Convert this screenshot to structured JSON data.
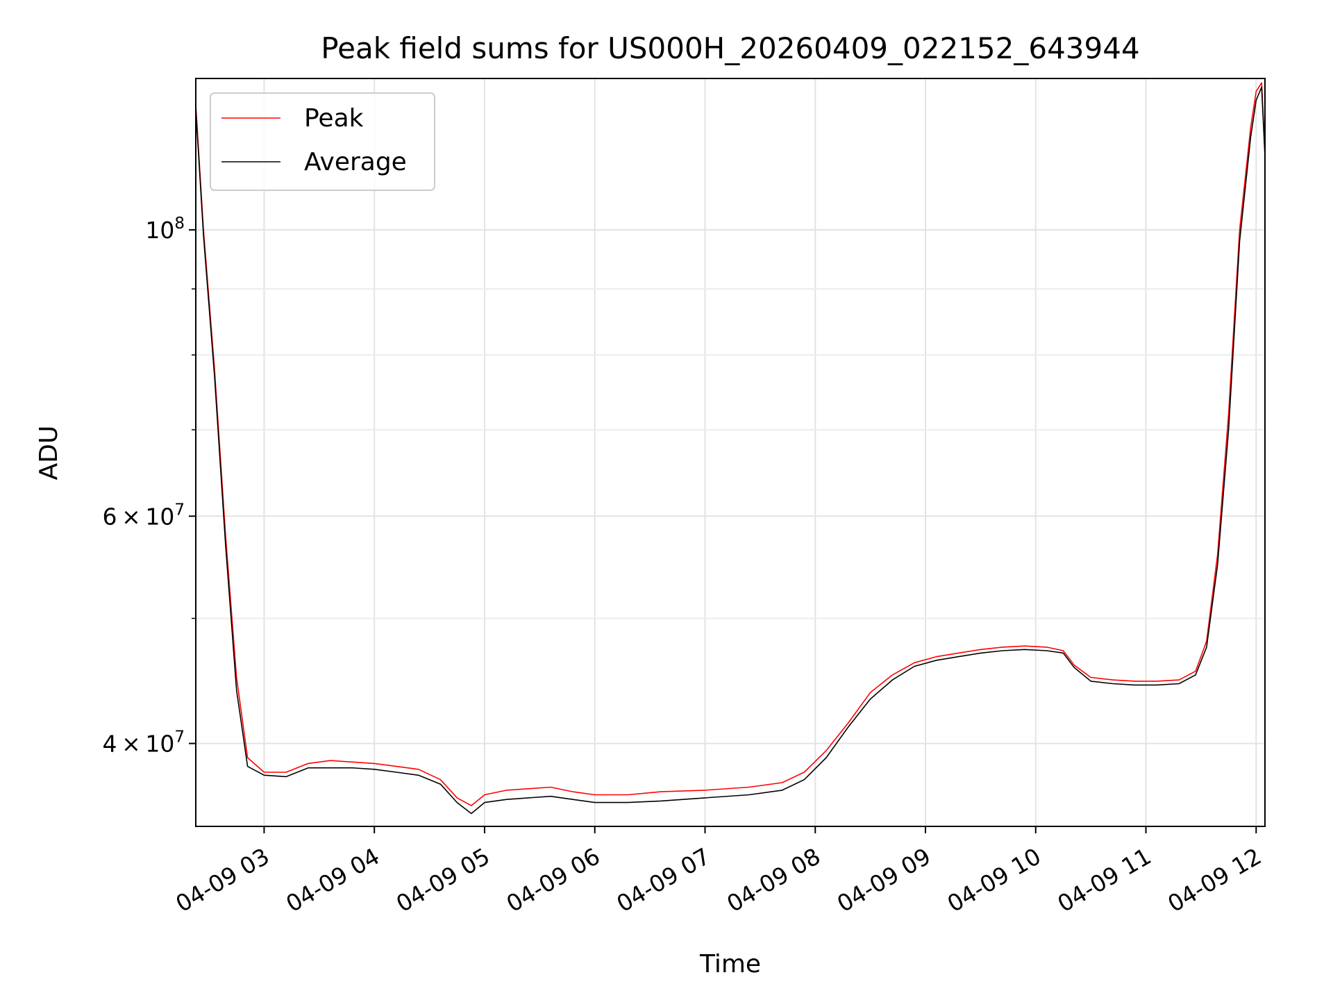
{
  "chart_data": {
    "type": "line",
    "title": "Peak field sums for US000H_20260409_022152_643944",
    "xlabel": "Time",
    "ylabel": "ADU",
    "yscale": "log",
    "ylim": [
      34500000,
      131000000
    ],
    "xlim": [
      2.38,
      12.08
    ],
    "grid": true,
    "legend_position": "top-left",
    "x_ticks": [
      {
        "value": 3,
        "label": "04-09 03"
      },
      {
        "value": 4,
        "label": "04-09 04"
      },
      {
        "value": 5,
        "label": "04-09 05"
      },
      {
        "value": 6,
        "label": "04-09 06"
      },
      {
        "value": 7,
        "label": "04-09 07"
      },
      {
        "value": 8,
        "label": "04-09 08"
      },
      {
        "value": 9,
        "label": "04-09 09"
      },
      {
        "value": 10,
        "label": "04-09 10"
      },
      {
        "value": 11,
        "label": "04-09 11"
      },
      {
        "value": 12,
        "label": "04-09 12"
      }
    ],
    "y_major_ticks": [
      {
        "value": 40000000,
        "base": "4",
        "times": "×",
        "power_base": "10",
        "exp": "7"
      },
      {
        "value": 60000000,
        "base": "6",
        "times": "×",
        "power_base": "10",
        "exp": "7"
      },
      {
        "value": 100000000,
        "base": "",
        "times": "",
        "power_base": "10",
        "exp": "8"
      }
    ],
    "y_minor_ticks": [
      50000000,
      70000000,
      80000000,
      90000000
    ],
    "series": [
      {
        "name": "Peak",
        "color": "#ff0000",
        "x": [
          2.38,
          2.45,
          2.55,
          2.65,
          2.75,
          2.85,
          3.0,
          3.2,
          3.4,
          3.6,
          3.8,
          4.0,
          4.2,
          4.4,
          4.6,
          4.75,
          4.88,
          5.0,
          5.2,
          5.4,
          5.6,
          5.8,
          6.0,
          6.3,
          6.6,
          7.0,
          7.4,
          7.7,
          7.9,
          8.1,
          8.3,
          8.5,
          8.7,
          8.9,
          9.1,
          9.3,
          9.5,
          9.7,
          9.9,
          10.1,
          10.25,
          10.35,
          10.5,
          10.7,
          10.9,
          11.1,
          11.3,
          11.45,
          11.55,
          11.65,
          11.75,
          11.85,
          11.95,
          12.0,
          12.05,
          12.08
        ],
        "values": [
          125000000,
          100000000,
          78000000,
          58000000,
          45000000,
          39000000,
          38000000,
          38000000,
          38600000,
          38800000,
          38700000,
          38600000,
          38400000,
          38200000,
          37500000,
          36300000,
          35800000,
          36500000,
          36800000,
          36900000,
          37000000,
          36700000,
          36500000,
          36500000,
          36700000,
          36800000,
          37000000,
          37300000,
          38000000,
          39500000,
          41500000,
          43800000,
          45200000,
          46200000,
          46700000,
          47000000,
          47300000,
          47500000,
          47600000,
          47500000,
          47200000,
          46000000,
          45000000,
          44800000,
          44700000,
          44700000,
          44800000,
          45500000,
          48000000,
          56000000,
          72000000,
          100000000,
          120000000,
          128000000,
          130000000,
          115000000
        ]
      },
      {
        "name": "Average",
        "color": "#000000",
        "x": [
          2.38,
          2.45,
          2.55,
          2.65,
          2.75,
          2.85,
          3.0,
          3.2,
          3.4,
          3.6,
          3.8,
          4.0,
          4.2,
          4.4,
          4.6,
          4.75,
          4.88,
          5.0,
          5.2,
          5.4,
          5.6,
          5.8,
          6.0,
          6.3,
          6.6,
          7.0,
          7.4,
          7.7,
          7.9,
          8.1,
          8.3,
          8.5,
          8.7,
          8.9,
          9.1,
          9.3,
          9.5,
          9.7,
          9.9,
          10.1,
          10.25,
          10.35,
          10.5,
          10.7,
          10.9,
          11.1,
          11.3,
          11.45,
          11.55,
          11.65,
          11.75,
          11.85,
          11.95,
          12.0,
          12.05,
          12.08
        ],
        "values": [
          124000000,
          99000000,
          77000000,
          57000000,
          44000000,
          38400000,
          37800000,
          37700000,
          38300000,
          38300000,
          38300000,
          38200000,
          38000000,
          37800000,
          37200000,
          36000000,
          35300000,
          36000000,
          36200000,
          36300000,
          36400000,
          36200000,
          36000000,
          36000000,
          36100000,
          36300000,
          36500000,
          36800000,
          37500000,
          39000000,
          41200000,
          43300000,
          44800000,
          45900000,
          46400000,
          46700000,
          47000000,
          47200000,
          47300000,
          47200000,
          47000000,
          45800000,
          44700000,
          44500000,
          44400000,
          44400000,
          44500000,
          45200000,
          47500000,
          55000000,
          70000000,
          98000000,
          118000000,
          126000000,
          129000000,
          114000000
        ]
      }
    ]
  }
}
